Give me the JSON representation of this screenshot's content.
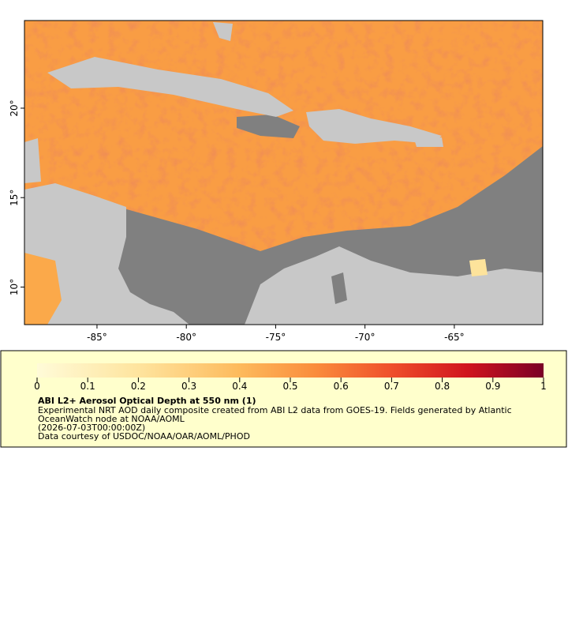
{
  "map": {
    "xlim": [
      -89.06,
      -60.05
    ],
    "ylim": [
      7.9,
      24.9
    ],
    "xticks": [
      {
        "value": -85,
        "label": "-85°"
      },
      {
        "value": -80,
        "label": "-80°"
      },
      {
        "value": -75,
        "label": "-75°"
      },
      {
        "value": -70,
        "label": "-70°"
      },
      {
        "value": -65,
        "label": "-65°"
      }
    ],
    "yticks": [
      {
        "value": 10,
        "label": "10°"
      },
      {
        "value": 15,
        "label": "15°"
      },
      {
        "value": 20,
        "label": "20°"
      }
    ]
  },
  "colorbar": {
    "range": [
      0,
      1
    ],
    "ticks": [
      0,
      0.1,
      0.2,
      0.3,
      0.4,
      0.5,
      0.6,
      0.7,
      0.8,
      0.9,
      1
    ]
  },
  "legend": {
    "title": "ABI L2+ Aerosol Optical Depth at 550 nm (1)",
    "lines": [
      "Experimental NRT AOD daily composite created from ABI L2 data from GOES-19. Fields generated by Atlantic",
      "OceanWatch node at NOAA/AOML",
      "(2026-07-03T00:00:00Z)",
      "Data courtesy of USDOC/NOAA/OAR/AOML/PHOD"
    ]
  }
}
